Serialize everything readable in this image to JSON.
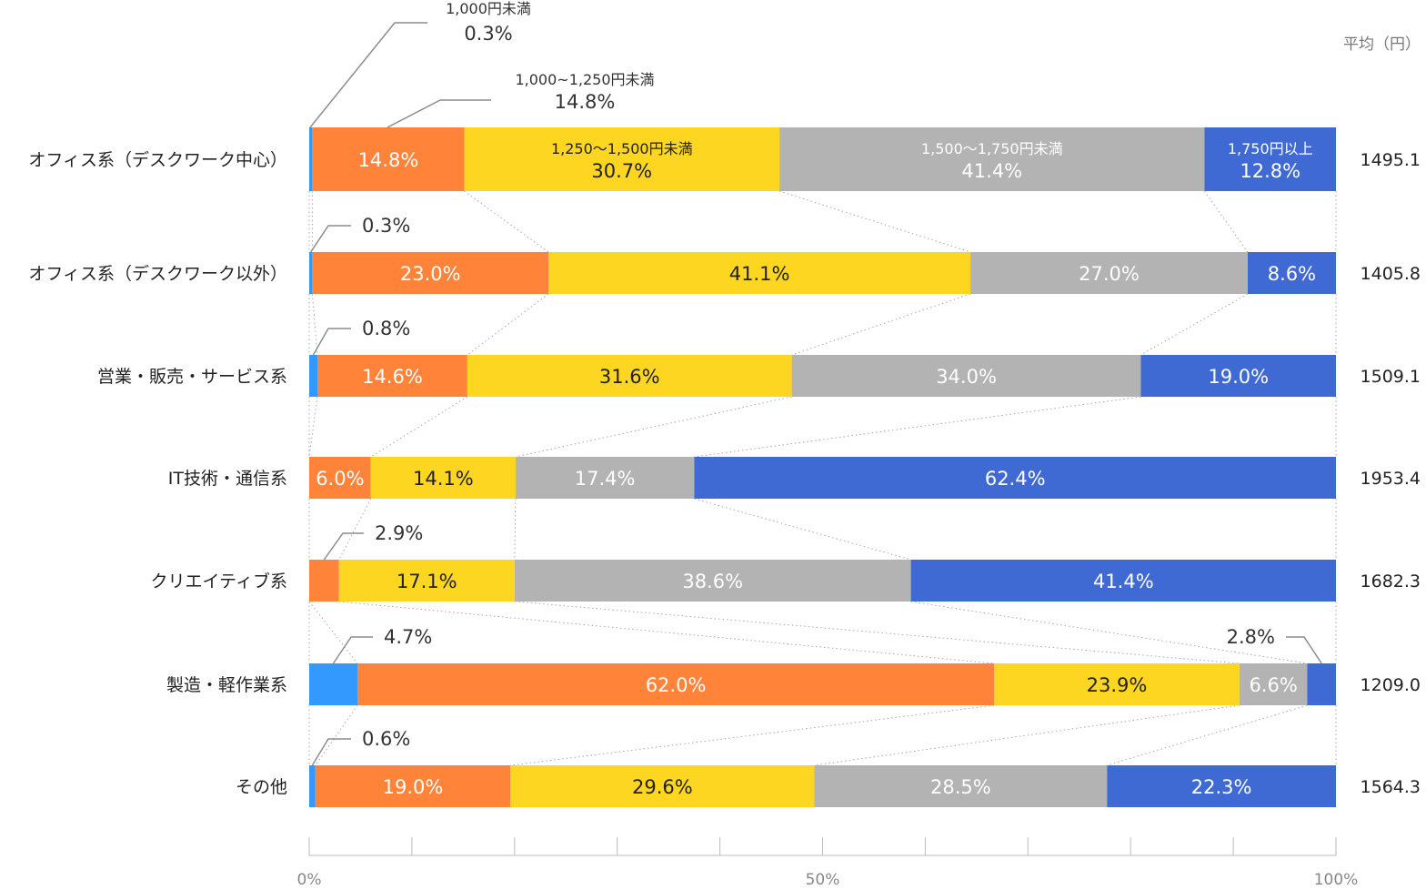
{
  "chart_data": {
    "type": "bar",
    "orientation": "horizontal",
    "stacked": true,
    "normalized": true,
    "xlim": [
      0,
      100
    ],
    "x_ticks": [
      "0%",
      "50%",
      "100%"
    ],
    "average_header": "平均（円）",
    "categories": [
      "オフィス系（デスクワーク中心）",
      "オフィス系（デスクワーク以外）",
      "営業・販売・サービス系",
      "IT技術・通信系",
      "クリエイティブ系",
      "製造・軽作業系",
      "その他"
    ],
    "averages": [
      "1495.1",
      "1405.8",
      "1509.1",
      "1953.4",
      "1682.3",
      "1209.0",
      "1564.3"
    ],
    "series": [
      {
        "name": "1,000円未満",
        "color": "#3399ff",
        "values": [
          0.3,
          0.3,
          0.8,
          0,
          0,
          4.7,
          0.6
        ],
        "labels": [
          "0.3%",
          "0.3%",
          "0.8%",
          "",
          "",
          "4.7%",
          "0.6%"
        ]
      },
      {
        "name": "1,000~1,250円未満",
        "color": "#ff843a",
        "values": [
          14.8,
          23.0,
          14.6,
          6.0,
          2.9,
          62.0,
          19.0
        ],
        "labels": [
          "14.8%",
          "23.0%",
          "14.6%",
          "6.0%",
          "2.9%",
          "62.0%",
          "19.0%"
        ]
      },
      {
        "name": "1,250〜1,500円未満",
        "color": "#fdd622",
        "values": [
          30.7,
          41.1,
          31.6,
          14.1,
          17.1,
          23.9,
          29.6
        ],
        "labels": [
          "30.7%",
          "41.1%",
          "31.6%",
          "14.1%",
          "17.1%",
          "23.9%",
          "29.6%"
        ]
      },
      {
        "name": "1,500〜1,750円未満",
        "color": "#b3b3b3",
        "values": [
          41.4,
          27.0,
          34.0,
          17.4,
          38.6,
          6.6,
          28.5
        ],
        "labels": [
          "41.4%",
          "27.0%",
          "34.0%",
          "17.4%",
          "38.6%",
          "6.6%",
          "28.5%"
        ]
      },
      {
        "name": "1,750円以上",
        "color": "#406ad3",
        "values": [
          12.8,
          8.6,
          19.0,
          62.4,
          41.4,
          2.8,
          22.3
        ],
        "labels": [
          "12.8%",
          "8.6%",
          "19.0%",
          "62.4%",
          "41.4%",
          "2.8%",
          "22.3%"
        ]
      }
    ]
  }
}
